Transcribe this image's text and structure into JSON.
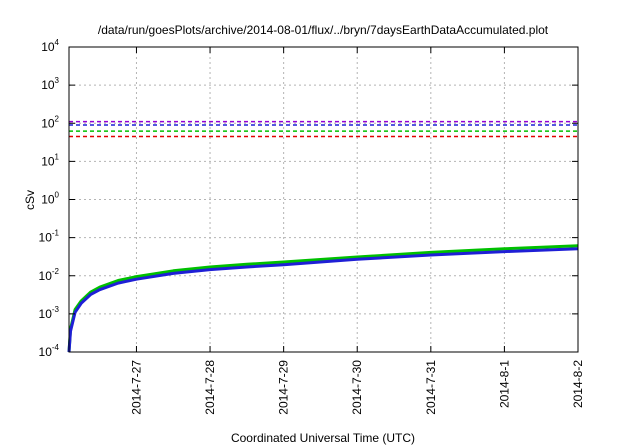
{
  "chart_data": {
    "type": "line",
    "title": "/data/run/goesPlots/archive/2014-08-01/flux/../bryn/7daysEarthDataAccumulated.plot",
    "xlabel": "Coordinated Universal Time (UTC)",
    "ylabel": "cSv",
    "y_scale": "log",
    "ylim": [
      0.0001,
      10000
    ],
    "y_ticks": [
      {
        "base": "10",
        "exp": "-4",
        "value": 0.0001
      },
      {
        "base": "10",
        "exp": "-3",
        "value": 0.001
      },
      {
        "base": "10",
        "exp": "-2",
        "value": 0.01
      },
      {
        "base": "10",
        "exp": "-1",
        "value": 0.1
      },
      {
        "base": "10",
        "exp": "0",
        "value": 1
      },
      {
        "base": "10",
        "exp": "1",
        "value": 10
      },
      {
        "base": "10",
        "exp": "2",
        "value": 100
      },
      {
        "base": "10",
        "exp": "3",
        "value": 1000
      },
      {
        "base": "10",
        "exp": "4",
        "value": 10000
      }
    ],
    "xlim": [
      "2014-07-26T02:00",
      "2014-08-02T00:00"
    ],
    "x_ticks": [
      {
        "label": "2014-7-27",
        "value": "2014-07-27"
      },
      {
        "label": "2014-7-28",
        "value": "2014-07-28"
      },
      {
        "label": "2014-7-29",
        "value": "2014-07-29"
      },
      {
        "label": "2014-7-30",
        "value": "2014-07-30"
      },
      {
        "label": "2014-7-31",
        "value": "2014-07-31"
      },
      {
        "label": "2014-8-1",
        "value": "2014-08-01"
      },
      {
        "label": "2014-8-2",
        "value": "2014-08-02"
      }
    ],
    "grid": true,
    "reference_lines": [
      {
        "value": 110,
        "color": "#9400d3",
        "style": "dashed"
      },
      {
        "value": 90,
        "color": "#1f1fd6",
        "style": "dashed"
      },
      {
        "value": 62,
        "color": "#00c000",
        "style": "dashed"
      },
      {
        "value": 45,
        "color": "#e00000",
        "style": "dashed"
      }
    ],
    "series": [
      {
        "color": "#00c000",
        "x": [
          "2014-07-26T02:00",
          "2014-07-26T02:30",
          "2014-07-26T04:00",
          "2014-07-26T06:00",
          "2014-07-26T09:00",
          "2014-07-26T12:00",
          "2014-07-26T18:00",
          "2014-07-27T00:00",
          "2014-07-27T12:00",
          "2014-07-28T00:00",
          "2014-07-28T12:00",
          "2014-07-29T00:00",
          "2014-07-30T00:00",
          "2014-07-31T00:00",
          "2014-08-01T00:00",
          "2014-08-02T00:00"
        ],
        "y": [
          0.0001,
          0.0004,
          0.0013,
          0.0022,
          0.0037,
          0.005,
          0.0075,
          0.0095,
          0.0135,
          0.017,
          0.02,
          0.023,
          0.031,
          0.041,
          0.051,
          0.061
        ]
      },
      {
        "color": "#1f1fd6",
        "x": [
          "2014-07-26T02:00",
          "2014-07-26T02:30",
          "2014-07-26T04:00",
          "2014-07-26T06:00",
          "2014-07-26T09:00",
          "2014-07-26T12:00",
          "2014-07-26T18:00",
          "2014-07-27T00:00",
          "2014-07-27T12:00",
          "2014-07-28T00:00",
          "2014-07-28T12:00",
          "2014-07-29T00:00",
          "2014-07-30T00:00",
          "2014-07-31T00:00",
          "2014-08-01T00:00",
          "2014-08-02T00:00"
        ],
        "y": [
          0.0001,
          0.00035,
          0.0011,
          0.0019,
          0.0032,
          0.0043,
          0.0064,
          0.0081,
          0.0115,
          0.0145,
          0.017,
          0.0195,
          0.027,
          0.035,
          0.043,
          0.051
        ]
      }
    ]
  }
}
